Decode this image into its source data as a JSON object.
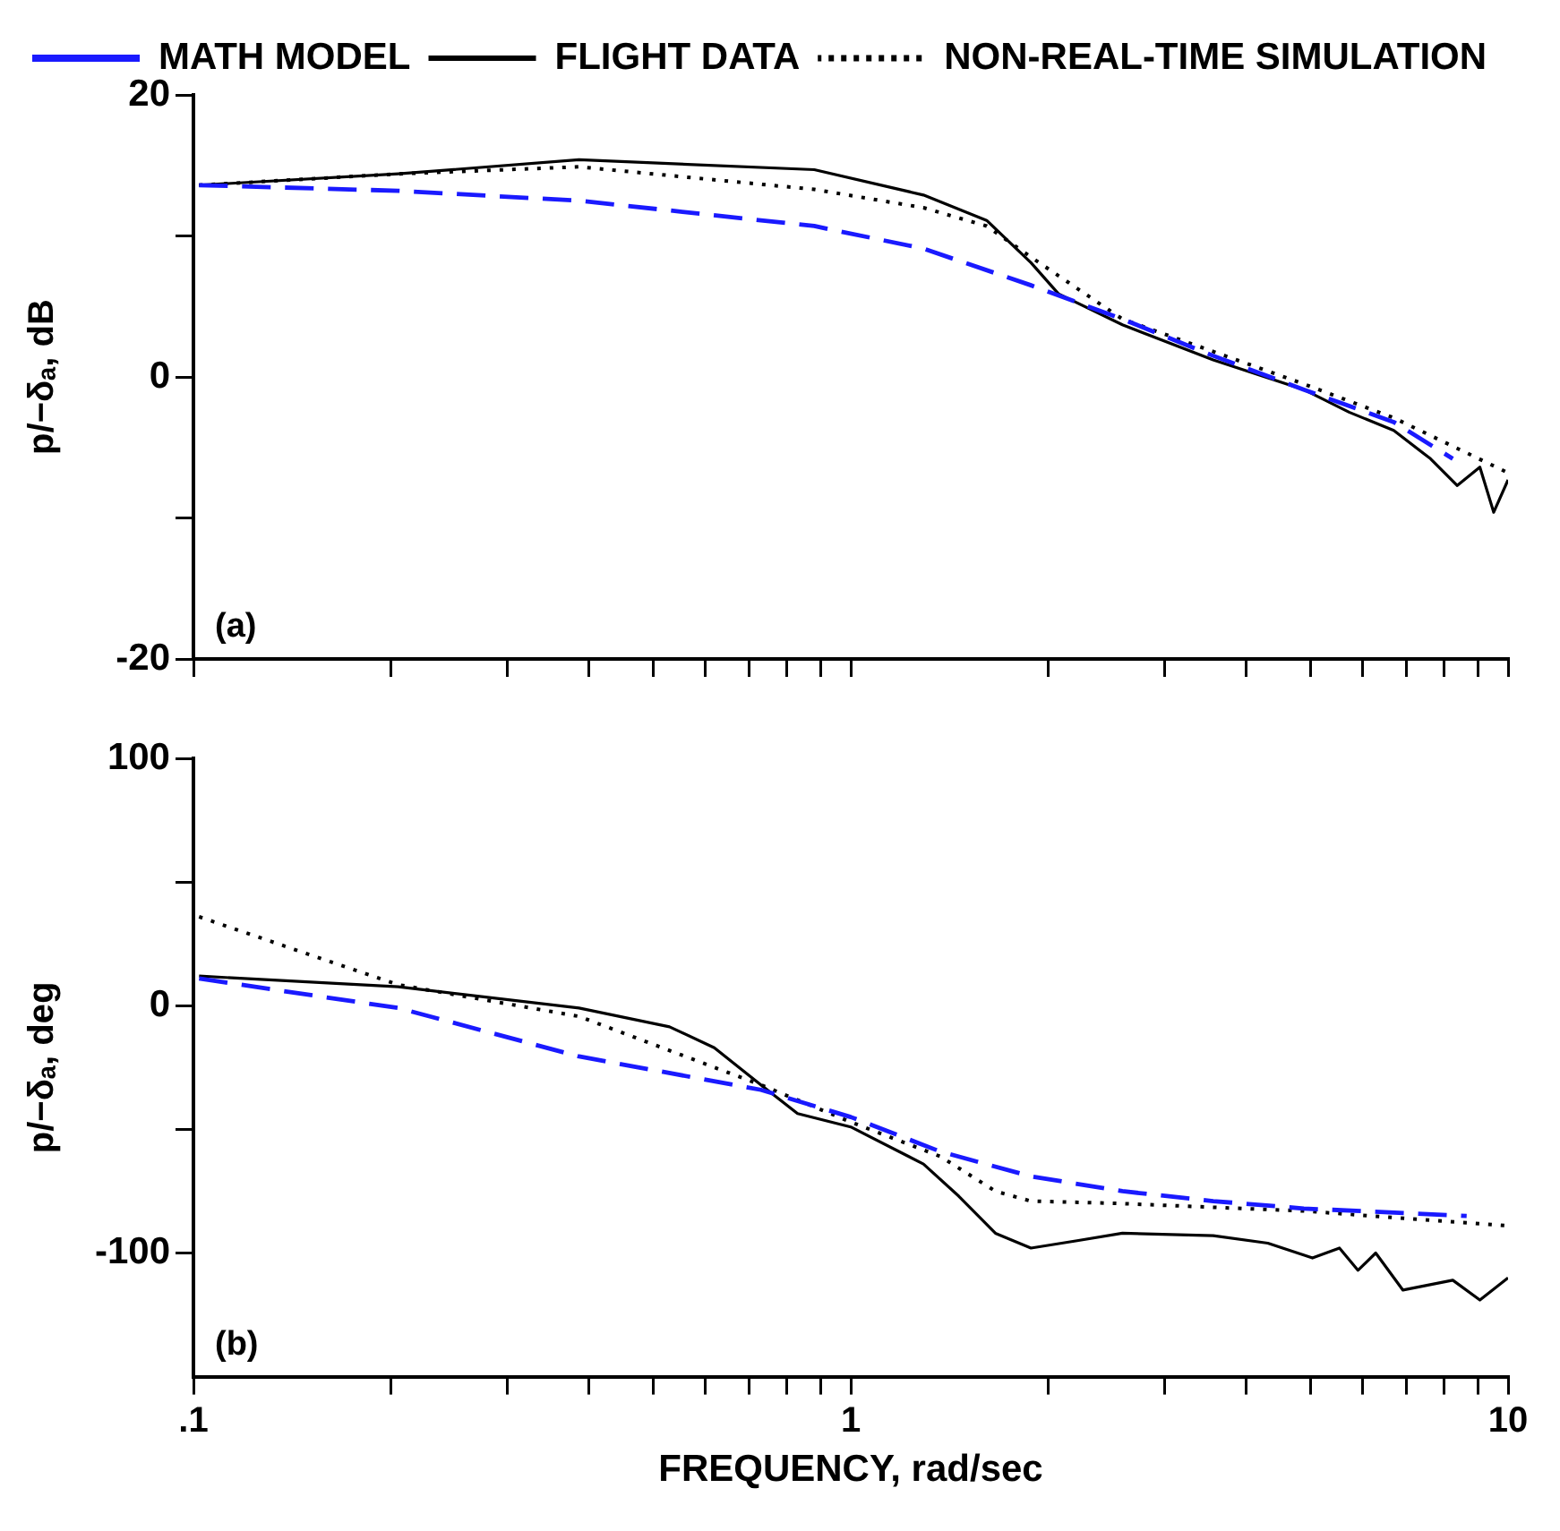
{
  "chart_data": [
    {
      "type": "line",
      "ylabel": "p/−δₐ, dB",
      "log": "x",
      "xlim": [
        0.1,
        10
      ],
      "ylim": [
        -20,
        20
      ],
      "xticks": [
        {
          "value": 0.1,
          "label": null
        },
        {
          "value": 0.2,
          "label": null
        },
        {
          "value": 0.3,
          "label": null
        },
        {
          "value": 0.4,
          "label": null
        },
        {
          "value": 0.5,
          "label": null
        },
        {
          "value": 0.6,
          "label": null
        },
        {
          "value": 0.7,
          "label": null
        },
        {
          "value": 0.8,
          "label": null
        },
        {
          "value": 0.9,
          "label": null
        },
        {
          "value": 1,
          "label": null
        },
        {
          "value": 2,
          "label": null
        },
        {
          "value": 3,
          "label": null
        },
        {
          "value": 4,
          "label": null
        },
        {
          "value": 5,
          "label": null
        },
        {
          "value": 6,
          "label": null
        },
        {
          "value": 7,
          "label": null
        },
        {
          "value": 8,
          "label": null
        },
        {
          "value": 9,
          "label": null
        },
        {
          "value": 10,
          "label": null
        }
      ],
      "yticks": [
        -20,
        {
          "value": -10,
          "label": null
        },
        0,
        {
          "value": 10,
          "label": null
        },
        20
      ],
      "tick_labels": "y",
      "grid": false,
      "legend": "top left",
      "annotations": [
        "(a)"
      ],
      "series": [
        {
          "name": "MATH MODEL",
          "color": "#1a1aff",
          "line_style": "dashed",
          "x": [
            0.102,
            0.205,
            0.386,
            0.88,
            1.29,
            1.88,
            2.59,
            3.56,
            4.89,
            6.7,
            8.24
          ],
          "values": [
            13.6,
            13.2,
            12.5,
            10.7,
            9.1,
            6.5,
            4.1,
            1.5,
            -0.9,
            -3.2,
            -5.8
          ]
        },
        {
          "name": "FLIGHT DATA",
          "color": "#000000",
          "line_style": "solid",
          "x": [
            0.102,
            0.205,
            0.386,
            0.88,
            1.29,
            1.61,
            1.88,
            2.07,
            2.59,
            3.56,
            4.89,
            5.73,
            6.7,
            7.62,
            8.37,
            9.06,
            9.51,
            10
          ],
          "values": [
            13.6,
            14.4,
            15.4,
            14.7,
            12.9,
            11.1,
            8.1,
            5.9,
            3.7,
            1.2,
            -0.9,
            -2.5,
            -3.8,
            -5.8,
            -7.7,
            -6.4,
            -9.6,
            -7.3
          ]
        },
        {
          "name": "NON-REAL-TIME SIMULATION",
          "color": "#000000",
          "line_style": "dotted",
          "x": [
            0.102,
            0.205,
            0.386,
            0.88,
            1.29,
            1.61,
            1.88,
            2.59,
            3.56,
            4.89,
            6.7,
            10
          ],
          "values": [
            13.6,
            14.4,
            14.9,
            13.3,
            12,
            10.7,
            8.5,
            4.1,
            1.8,
            -0.5,
            -2.9,
            -6.8
          ]
        }
      ]
    },
    {
      "type": "line",
      "ylabel": "p/−δₐ, deg",
      "xlabel": "FREQUENCY, rad/sec",
      "log": "x",
      "xlim": [
        0.1,
        10
      ],
      "ylim": [
        -150,
        100
      ],
      "xticks": [
        {
          "value": 0.1,
          "label": ".1"
        },
        {
          "value": 0.2,
          "label": null
        },
        {
          "value": 0.3,
          "label": null
        },
        {
          "value": 0.4,
          "label": null
        },
        {
          "value": 0.5,
          "label": null
        },
        {
          "value": 0.6,
          "label": null
        },
        {
          "value": 0.7,
          "label": null
        },
        {
          "value": 0.8,
          "label": null
        },
        {
          "value": 0.9,
          "label": null
        },
        1,
        {
          "value": 2,
          "label": null
        },
        {
          "value": 3,
          "label": null
        },
        {
          "value": 4,
          "label": null
        },
        {
          "value": 5,
          "label": null
        },
        {
          "value": 6,
          "label": null
        },
        {
          "value": 7,
          "label": null
        },
        {
          "value": 8,
          "label": null
        },
        {
          "value": 9,
          "label": null
        },
        10
      ],
      "yticks": [
        -100,
        {
          "value": -50,
          "label": null
        },
        0,
        {
          "value": 50,
          "label": null
        },
        100
      ],
      "grid": false,
      "annotations": [
        "(b)"
      ],
      "series": [
        {
          "color": "#1a1aff",
          "line_style": "dashed",
          "x": [
            0.102,
            0.205,
            0.386,
            0.73,
            1.0,
            1.37,
            1.88,
            2.59,
            3.56,
            4.89,
            8.65
          ],
          "values": [
            11,
            -0.9,
            -20.5,
            -34,
            -45,
            -59,
            -69,
            -75,
            -79,
            -82,
            -85
          ]
        },
        {
          "color": "#000000",
          "line_style": "solid",
          "x": [
            0.102,
            0.205,
            0.386,
            0.53,
            0.62,
            0.73,
            0.83,
            1.0,
            1.29,
            1.46,
            1.66,
            1.88,
            2.21,
            2.59,
            3.56,
            4.31,
            5.04,
            5.54,
            5.91,
            6.29,
            6.92,
            8.24,
            9.06,
            10
          ],
          "values": [
            12,
            7.7,
            -0.9,
            -8.5,
            -17,
            -32,
            -43.6,
            -49,
            -64,
            -77,
            -92,
            -98,
            -95,
            -92,
            -93,
            -96,
            -102,
            -98,
            -107,
            -100,
            -115,
            -111,
            -119,
            -110
          ]
        },
        {
          "color": "#000000",
          "line_style": "dotted",
          "x": [
            0.102,
            0.149,
            0.205,
            0.386,
            0.73,
            1.0,
            1.37,
            1.66,
            1.88,
            2.59,
            4.89,
            10
          ],
          "values": [
            36,
            21,
            8.5,
            -4.3,
            -32,
            -47,
            -61,
            -75,
            -79,
            -80,
            -83,
            -89
          ]
        }
      ]
    }
  ]
}
